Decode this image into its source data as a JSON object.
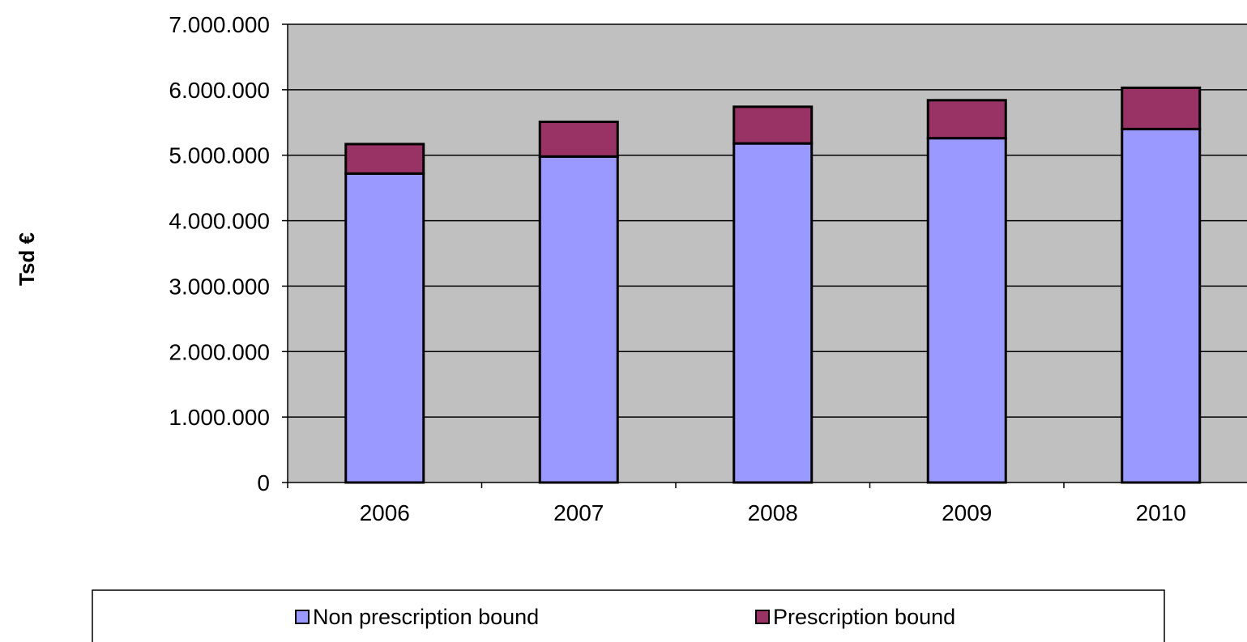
{
  "chart_data": {
    "type": "bar",
    "stacked": true,
    "categories": [
      "2006",
      "2007",
      "2008",
      "2009",
      "2010"
    ],
    "series": [
      {
        "name": "Non prescription bound",
        "values": [
          4720000,
          4980000,
          5180000,
          5260000,
          5400000
        ],
        "color": "#9999ff"
      },
      {
        "name": "Prescription bound",
        "values": [
          450000,
          530000,
          560000,
          580000,
          630000
        ],
        "color": "#993366"
      }
    ],
    "ylabel": "Tsd €",
    "ylim": [
      0,
      7000000
    ],
    "yticks": [
      0,
      1000000,
      2000000,
      3000000,
      4000000,
      5000000,
      6000000,
      7000000
    ],
    "ytick_labels": [
      "0",
      "1.000.000",
      "2.000.000",
      "3.000.000",
      "4.000.000",
      "5.000.000",
      "6.000.000",
      "7.000.000"
    ],
    "grid": true,
    "legend_position": "bottom",
    "plot_background": "#c0c0c0"
  }
}
